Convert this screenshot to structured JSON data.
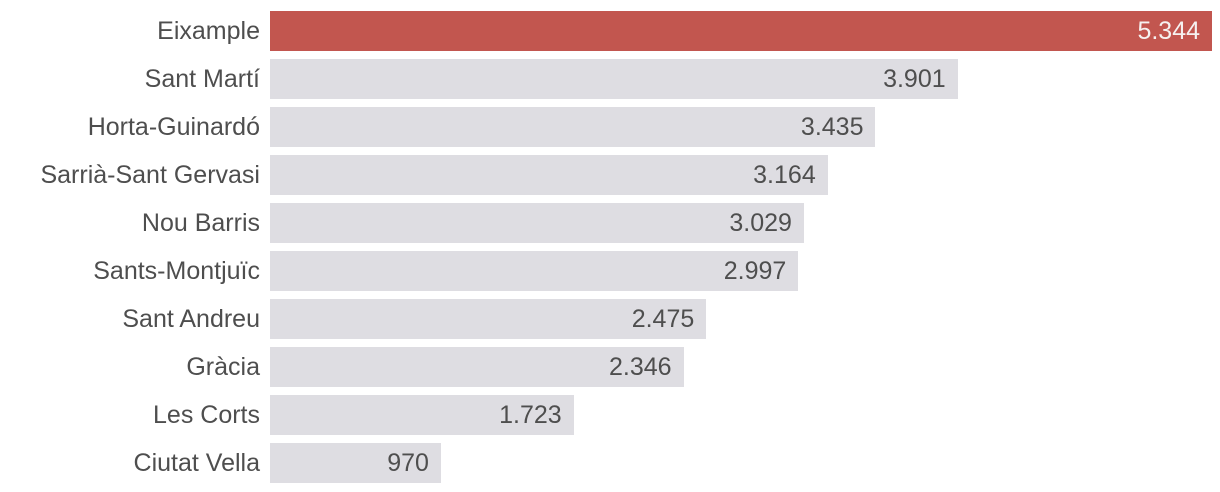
{
  "chart_data": {
    "type": "bar",
    "orientation": "horizontal",
    "title": "",
    "xlabel": "",
    "ylabel": "",
    "grid": false,
    "legend": false,
    "sorted": "descending",
    "value_label_position": "inside-end",
    "categories": [
      "Eixample",
      "Sant Martí",
      "Horta-Guinardó",
      "Sarrià-Sant Gervasi",
      "Nou Barris",
      "Sants-Montjuïc",
      "Sant Andreu",
      "Gràcia",
      "Les Corts",
      "Ciutat Vella"
    ],
    "values": [
      5344,
      3901,
      3435,
      3164,
      3029,
      2997,
      2475,
      2346,
      1723,
      970
    ],
    "value_labels": [
      "5.344",
      "3.901",
      "3.435",
      "3.164",
      "3.029",
      "2.997",
      "2.475",
      "2.346",
      "1.723",
      "970"
    ],
    "xlim": [
      0,
      5344
    ],
    "highlight_index": 0,
    "colors": {
      "highlight_bar": "#c2564f",
      "default_bar": "#dedde2",
      "highlight_value_text": "#f6f1f0",
      "default_value_text": "#4e4e4e",
      "label_text": "#4e4e4e",
      "background": "#ffffff"
    }
  }
}
